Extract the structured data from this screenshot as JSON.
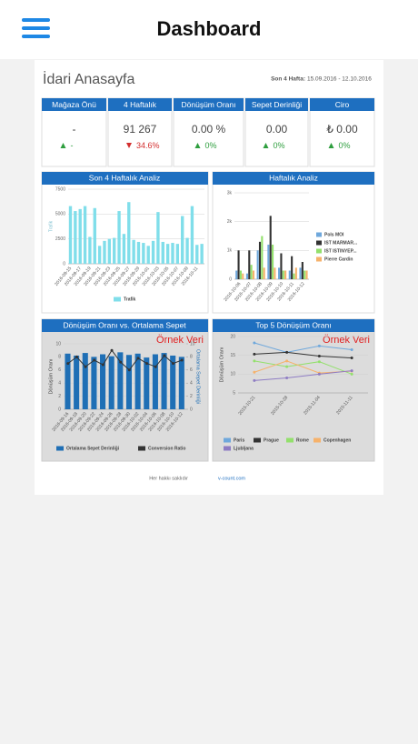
{
  "header": {
    "title": "Dashboard"
  },
  "page": {
    "title": "İdari Anasayfa",
    "period_label": "Son 4 Hafta:",
    "period": "15.09.2016 - 12.10.2016"
  },
  "kpis": [
    {
      "title": "Mağaza Önü",
      "value": "-",
      "change": "-",
      "trend": "up"
    },
    {
      "title": "4 Haftalık",
      "value": "91 267",
      "change": "34.6%",
      "trend": "down"
    },
    {
      "title": "Dönüşüm Oranı",
      "value": "0.00 %",
      "change": "0%",
      "trend": "up"
    },
    {
      "title": "Sepet Derinliği",
      "value": "0.00",
      "change": "0%",
      "trend": "up"
    },
    {
      "title": "Ciro",
      "value": "₺ 0.00",
      "change": "0%",
      "trend": "up"
    }
  ],
  "chart_data": [
    {
      "type": "bar",
      "title": "Son 4 Haftalık Analiz",
      "ylabel": "Trafik",
      "legend": "bottom",
      "categories": [
        "2016-09-15",
        null,
        "2016-09-17",
        null,
        "2016-09-19",
        null,
        "2016-09-21",
        null,
        "2016-09-23",
        null,
        "2016-09-25",
        null,
        "2016-09-27",
        null,
        "2016-09-29",
        null,
        "2016-10-01",
        null,
        "2016-10-03",
        null,
        "2016-10-05",
        null,
        "2016-10-07",
        null,
        "2016-10-09",
        null,
        "2016-10-11",
        null
      ],
      "series": [
        {
          "name": "Trafik",
          "color": "#80deea",
          "values": [
            5800,
            5300,
            5500,
            5800,
            2700,
            5600,
            1800,
            2300,
            2500,
            2600,
            5300,
            3000,
            6200,
            2400,
            2200,
            2100,
            1800,
            2300,
            5200,
            2200,
            2000,
            2100,
            2000,
            4800,
            2600,
            5800,
            1900,
            2000
          ]
        }
      ],
      "ylim": [
        0,
        7500
      ],
      "yticks": [
        0,
        2500,
        5000,
        7500
      ]
    },
    {
      "type": "bar",
      "title": "Haftalık Analiz",
      "legend": "right",
      "categories": [
        "2016-10-06",
        "2016-10-07",
        "2016-10-08",
        "2016-10-09",
        "2016-10-10",
        "2016-10-11",
        "2016-10-12"
      ],
      "series": [
        {
          "name": "Pols MOI",
          "color": "#6fa8dc",
          "values": [
            300,
            200,
            1000,
            1200,
            400,
            300,
            400
          ]
        },
        {
          "name": "IST MARMAR...",
          "color": "#333333",
          "values": [
            1000,
            1000,
            1300,
            2200,
            900,
            800,
            600
          ]
        },
        {
          "name": "IST ISTINYEP...",
          "color": "#93e06c",
          "values": [
            300,
            500,
            1500,
            1200,
            300,
            200,
            300
          ]
        },
        {
          "name": "Pierre Cardin",
          "color": "#f6b26b",
          "values": [
            200,
            300,
            400,
            400,
            300,
            400,
            300
          ]
        }
      ],
      "ylim": [
        0,
        3000
      ],
      "yticks": [
        0,
        {
          "value": 1000,
          "label": "1k"
        },
        {
          "value": 2000,
          "label": "2k"
        },
        {
          "value": 3000,
          "label": "3k"
        }
      ]
    },
    {
      "type": "combo",
      "title": "Dönüşüm Oranı vs. Ortalama Sepet",
      "annotation": "Örnek Veri",
      "ylabel": "Dönüşüm Oranı",
      "y2label": "Ortalama Sepet Derinliği",
      "legend": "bottom",
      "categories": [
        "2016-09-16",
        "2016-09-18",
        "2016-09-20",
        "2016-09-22",
        "2016-09-24",
        "2016-09-26",
        "2016-09-28",
        "2016-09-30",
        "2016-10-02",
        "2016-10-04",
        "2016-10-06",
        "2016-10-08",
        "2016-10-10",
        "2016-10-12"
      ],
      "series": [
        {
          "name": "Ortalama Sepet Derinliği",
          "color": "#1f6fb5",
          "values": [
            8.5,
            8.2,
            8.6,
            8.0,
            8.4,
            8.1,
            8.7,
            8.3,
            8.5,
            7.9,
            8.4,
            8.6,
            8.2,
            8.0
          ]
        },
        {
          "name": "Conversion Ratio",
          "color": "#333333",
          "axis": "y2",
          "values": [
            7.0,
            8.0,
            6.5,
            7.5,
            6.8,
            9.0,
            7.2,
            6.0,
            7.8,
            7.0,
            6.5,
            8.2,
            7.0,
            7.5
          ]
        }
      ],
      "ylim": [
        0,
        10
      ],
      "yticks": [
        0,
        2,
        4,
        6,
        8,
        10
      ],
      "y2lim": [
        0,
        10
      ],
      "y2ticks": [
        0,
        2,
        4,
        6,
        8,
        10
      ]
    },
    {
      "type": "line",
      "title": "Top 5 Dönüşüm Oranı",
      "annotation": "Örnek Veri",
      "ylabel": "Dönüşüm Oranı",
      "legend": "bottom",
      "categories": [
        "2015-10-21",
        "2015-10-28",
        "2015-11-04",
        "2015-11-11"
      ],
      "series": [
        {
          "name": "Paris",
          "color": "#6fa8dc",
          "values": [
            18.3,
            15.8,
            17.5,
            16.5
          ]
        },
        {
          "name": "Prague",
          "color": "#333333",
          "values": [
            15.3,
            15.8,
            14.8,
            14.3
          ]
        },
        {
          "name": "Rome",
          "color": "#93e06c",
          "values": [
            13.5,
            12.0,
            13.3,
            10.0
          ]
        },
        {
          "name": "Copenhagen",
          "color": "#f6b26b",
          "values": [
            10.5,
            13.5,
            10.3,
            10.8
          ]
        },
        {
          "name": "Ljubljana",
          "color": "#8e7cc3",
          "values": [
            8.3,
            9.0,
            10.0,
            10.9
          ]
        }
      ],
      "ylim": [
        5,
        20
      ],
      "yticks": [
        5,
        10,
        15,
        20
      ]
    }
  ],
  "footer": {
    "text": "Her hakkı saklıdır",
    "link": "v-count.com"
  }
}
